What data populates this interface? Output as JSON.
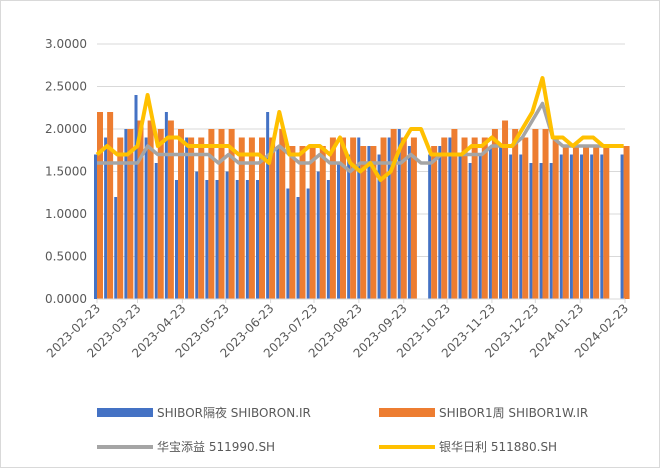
{
  "chart_data": {
    "type": "bar-line",
    "x": [
      "2023-02-23",
      "2023-03-02",
      "2023-03-09",
      "2023-03-16",
      "2023-03-23",
      "2023-03-30",
      "2023-04-06",
      "2023-04-13",
      "2023-04-20",
      "2023-04-27",
      "2023-05-04",
      "2023-05-11",
      "2023-05-18",
      "2023-05-25",
      "2023-06-01",
      "2023-06-08",
      "2023-06-15",
      "2023-06-22",
      "2023-06-29",
      "2023-07-06",
      "2023-07-13",
      "2023-07-20",
      "2023-07-27",
      "2023-08-03",
      "2023-08-10",
      "2023-08-17",
      "2023-08-24",
      "2023-08-31",
      "2023-09-07",
      "2023-09-14",
      "2023-09-21",
      "2023-09-28",
      "2023-10-05",
      "2023-10-12",
      "2023-10-19",
      "2023-10-26",
      "2023-11-02",
      "2023-11-09",
      "2023-11-16",
      "2023-11-23",
      "2023-11-30",
      "2023-12-07",
      "2023-12-14",
      "2023-12-21",
      "2023-12-28",
      "2024-01-04",
      "2024-01-11",
      "2024-01-18",
      "2024-01-25",
      "2024-02-01",
      "2024-02-08",
      "2024-02-15",
      "2024-02-22"
    ],
    "series": [
      {
        "name": "SHIBOR隔夜 SHIBORON.IR",
        "kind": "bar",
        "color": "#4472c4",
        "values": [
          1.7,
          1.9,
          1.2,
          2.0,
          2.4,
          1.9,
          1.6,
          2.2,
          1.4,
          1.9,
          1.5,
          1.4,
          1.4,
          1.5,
          1.4,
          1.4,
          1.4,
          2.2,
          1.8,
          1.3,
          1.2,
          1.3,
          1.5,
          1.4,
          1.6,
          1.7,
          1.9,
          1.8,
          1.7,
          1.9,
          2.0,
          1.8,
          null,
          1.7,
          1.8,
          1.9,
          1.7,
          1.6,
          1.7,
          1.8,
          1.8,
          1.7,
          1.7,
          1.6,
          1.6,
          1.6,
          1.7,
          1.7,
          1.7,
          1.7,
          1.7,
          null,
          1.7
        ]
      },
      {
        "name": "SHIBOR1周 SHIBOR1W.IR",
        "kind": "bar",
        "color": "#ed7d31",
        "values": [
          2.2,
          2.2,
          1.9,
          2.0,
          2.1,
          2.1,
          2.0,
          2.1,
          2.0,
          1.9,
          1.9,
          2.0,
          2.0,
          2.0,
          1.9,
          1.9,
          1.9,
          1.9,
          2.0,
          1.8,
          1.8,
          1.8,
          1.8,
          1.9,
          1.9,
          1.9,
          1.8,
          1.8,
          1.9,
          2.0,
          1.9,
          1.9,
          null,
          1.8,
          1.9,
          2.0,
          1.9,
          1.9,
          1.9,
          2.0,
          2.1,
          2.0,
          1.9,
          2.0,
          2.0,
          1.9,
          1.8,
          1.8,
          1.8,
          1.8,
          1.8,
          null,
          1.8
        ]
      },
      {
        "name": "华宝添益 511990.SH",
        "kind": "line",
        "color": "#a5a5a5",
        "values": [
          1.6,
          1.6,
          1.6,
          1.6,
          1.6,
          1.8,
          1.7,
          1.7,
          1.7,
          1.7,
          1.7,
          1.7,
          1.6,
          1.7,
          1.6,
          1.6,
          1.6,
          1.7,
          1.8,
          1.7,
          1.6,
          1.6,
          1.7,
          1.6,
          1.6,
          1.5,
          1.6,
          1.6,
          1.6,
          1.6,
          1.6,
          1.7,
          1.6,
          1.6,
          1.7,
          1.7,
          1.7,
          1.7,
          1.7,
          1.8,
          1.8,
          1.8,
          1.9,
          2.1,
          2.3,
          1.9,
          1.8,
          1.8,
          1.8,
          1.8,
          1.8,
          1.8,
          1.8
        ]
      },
      {
        "name": "银华日利 511880.SH",
        "kind": "line",
        "color": "#ffc000",
        "values": [
          1.7,
          1.8,
          1.7,
          1.7,
          1.8,
          2.4,
          1.8,
          1.9,
          1.9,
          1.8,
          1.8,
          1.8,
          1.8,
          1.8,
          1.7,
          1.7,
          1.7,
          1.6,
          2.2,
          1.7,
          1.7,
          1.8,
          1.8,
          1.7,
          1.9,
          1.6,
          1.5,
          1.6,
          1.4,
          1.5,
          1.8,
          2.0,
          2.0,
          1.7,
          1.7,
          1.7,
          1.7,
          1.8,
          1.8,
          1.9,
          1.8,
          1.8,
          2.0,
          2.2,
          2.6,
          1.9,
          1.9,
          1.8,
          1.9,
          1.9,
          1.8,
          1.8,
          1.8
        ]
      }
    ],
    "xlim": [
      "2023-02-23",
      "2024-02-23"
    ],
    "xticks": [
      "2023-02-23",
      "2023-03-23",
      "2023-04-23",
      "2023-05-23",
      "2023-06-23",
      "2023-07-23",
      "2023-08-23",
      "2023-09-23",
      "2023-10-23",
      "2023-11-23",
      "2023-12-23",
      "2024-01-23",
      "2024-02-23"
    ],
    "ylim": [
      0,
      3
    ],
    "yticks": [
      {
        "value": 0,
        "label": "0.0000"
      },
      {
        "value": 0.5,
        "label": "0.5000"
      },
      {
        "value": 1,
        "label": "1.0000"
      },
      {
        "value": 1.5,
        "label": "1.5000"
      },
      {
        "value": 2,
        "label": "2.0000"
      },
      {
        "value": 2.5,
        "label": "2.5000"
      },
      {
        "value": 3,
        "label": "3.0000"
      }
    ],
    "grid": true
  }
}
